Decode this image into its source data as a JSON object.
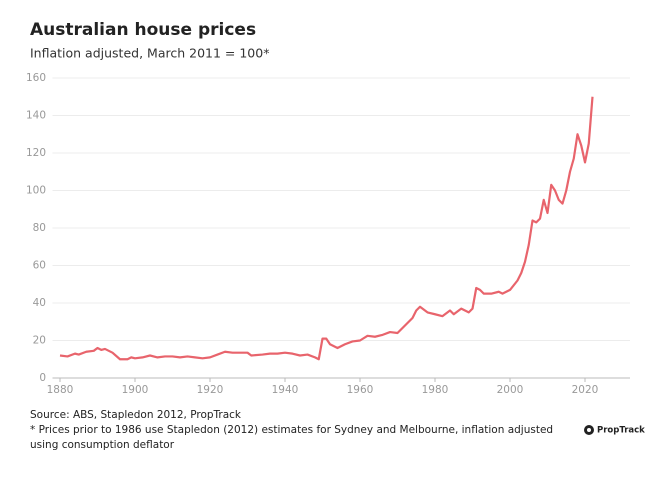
{
  "chart_data": {
    "type": "line",
    "title": "Australian house prices",
    "subtitle": "Inflation adjusted, March 2011 = 100*",
    "source": "Source: ABS, Stapledon 2012, PropTrack",
    "footnote_1": "* Prices prior to 1986 use Stapledon (2012) estimates for Sydney and Melbourne, inflation adjusted",
    "footnote_2": "using consumption deflator",
    "logo": "PropTrack",
    "color": "#e8646c",
    "x": [
      1880,
      1882,
      1884,
      1885,
      1887,
      1889,
      1890,
      1891,
      1892,
      1894,
      1896,
      1898,
      1899,
      1900,
      1902,
      1904,
      1906,
      1908,
      1910,
      1912,
      1914,
      1916,
      1918,
      1920,
      1922,
      1924,
      1926,
      1928,
      1930,
      1931,
      1934,
      1936,
      1938,
      1940,
      1942,
      1944,
      1946,
      1948,
      1949,
      1950,
      1951,
      1952,
      1954,
      1956,
      1958,
      1960,
      1962,
      1964,
      1966,
      1968,
      1970,
      1972,
      1974,
      1975,
      1976,
      1978,
      1980,
      1982,
      1984,
      1985,
      1987,
      1989,
      1990,
      1991,
      1992,
      1993,
      1995,
      1997,
      1998,
      2000,
      2002,
      2003,
      2004,
      2005,
      2006,
      2007,
      2008,
      2009,
      2010,
      2011,
      2012,
      2013,
      2014,
      2015,
      2016,
      2017,
      2018,
      2019,
      2020,
      2021,
      2022
    ],
    "values": [
      12,
      11.5,
      13,
      12.5,
      14,
      14.5,
      16,
      15,
      15.5,
      13.5,
      10,
      10,
      11,
      10.5,
      11,
      12,
      11,
      11.5,
      11.5,
      11,
      11.5,
      11,
      10.5,
      11,
      12.5,
      14,
      13.5,
      13.5,
      13.5,
      12,
      12.5,
      13,
      13,
      13.5,
      13,
      12,
      12.5,
      11,
      10,
      21,
      21,
      18,
      16,
      18,
      19.5,
      20,
      22.5,
      22,
      23,
      24.5,
      24,
      28,
      32,
      36,
      38,
      35,
      34,
      33,
      36,
      34,
      37,
      35,
      37,
      48,
      47,
      45,
      45,
      46,
      45,
      47,
      52,
      56,
      62,
      71,
      84,
      83,
      85,
      95,
      88,
      103,
      100,
      95,
      93,
      100,
      110,
      117,
      130,
      124,
      115,
      125,
      150
    ],
    "xlim": [
      1878,
      2032
    ],
    "ylim": [
      0,
      160
    ],
    "xticks": [
      1880,
      1900,
      1920,
      1940,
      1960,
      1980,
      2000,
      2020
    ],
    "yticks": [
      0,
      20,
      40,
      60,
      80,
      100,
      120,
      140,
      160
    ],
    "grid": true
  }
}
